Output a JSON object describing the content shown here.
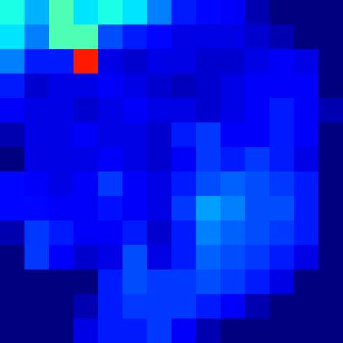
{
  "chart_data": {
    "type": "heatmap",
    "tick_labels": false,
    "color_range": [
      0,
      1
    ],
    "cells": [
      [
        0.4,
        0.3,
        0.45,
        0.35,
        0.4,
        0.35,
        0.25,
        0.15,
        0.13,
        0.12,
        0.05,
        0,
        0,
        0
      ],
      [
        0.35,
        0.25,
        0.45,
        0.45,
        0.2,
        0.15,
        0.13,
        0.1,
        0.1,
        0.1,
        0.08,
        0.05,
        0,
        0
      ],
      [
        0.25,
        0.15,
        0.15,
        0.85,
        0.1,
        0.08,
        0.1,
        0.1,
        0.08,
        0.08,
        0.1,
        0.12,
        0.1,
        0
      ],
      [
        0.15,
        0.08,
        0.1,
        0.1,
        0.12,
        0.1,
        0.08,
        0.06,
        0.08,
        0.1,
        0.12,
        0.12,
        0.12,
        0
      ],
      [
        0.12,
        0.1,
        0.1,
        0.08,
        0.1,
        0.12,
        0.1,
        0.1,
        0.08,
        0.1,
        0.12,
        0.15,
        0.12,
        0.05
      ],
      [
        0.05,
        0.1,
        0.1,
        0.12,
        0.1,
        0.1,
        0.08,
        0.15,
        0.18,
        0.12,
        0.12,
        0.15,
        0.12,
        0
      ],
      [
        0,
        0.1,
        0.1,
        0.1,
        0.12,
        0.1,
        0.08,
        0.12,
        0.18,
        0.15,
        0.18,
        0.15,
        0.1,
        0
      ],
      [
        0.13,
        0.12,
        0.1,
        0.12,
        0.18,
        0.12,
        0.1,
        0.15,
        0.2,
        0.22,
        0.2,
        0.18,
        0.15,
        0
      ],
      [
        0.13,
        0.13,
        0.12,
        0.12,
        0.14,
        0.12,
        0.1,
        0.18,
        0.28,
        0.25,
        0.2,
        0.2,
        0.15,
        0
      ],
      [
        0.05,
        0.18,
        0.15,
        0.12,
        0.12,
        0.15,
        0.08,
        0.15,
        0.25,
        0.22,
        0.2,
        0.18,
        0.15,
        0
      ],
      [
        0,
        0.18,
        0.12,
        0.08,
        0.1,
        0.2,
        0.1,
        0.15,
        0.22,
        0.2,
        0.18,
        0.15,
        0.1,
        0
      ],
      [
        0,
        0,
        0,
        0,
        0.15,
        0.2,
        0.18,
        0.18,
        0.2,
        0.18,
        0.15,
        0.1,
        0,
        0
      ],
      [
        0,
        0,
        0,
        0.05,
        0.15,
        0.18,
        0.18,
        0.18,
        0.15,
        0.12,
        0.05,
        0,
        0,
        0
      ],
      [
        0,
        0,
        0,
        0.1,
        0.15,
        0.15,
        0.18,
        0.12,
        0.05,
        0,
        0,
        0,
        0,
        0
      ]
    ]
  }
}
